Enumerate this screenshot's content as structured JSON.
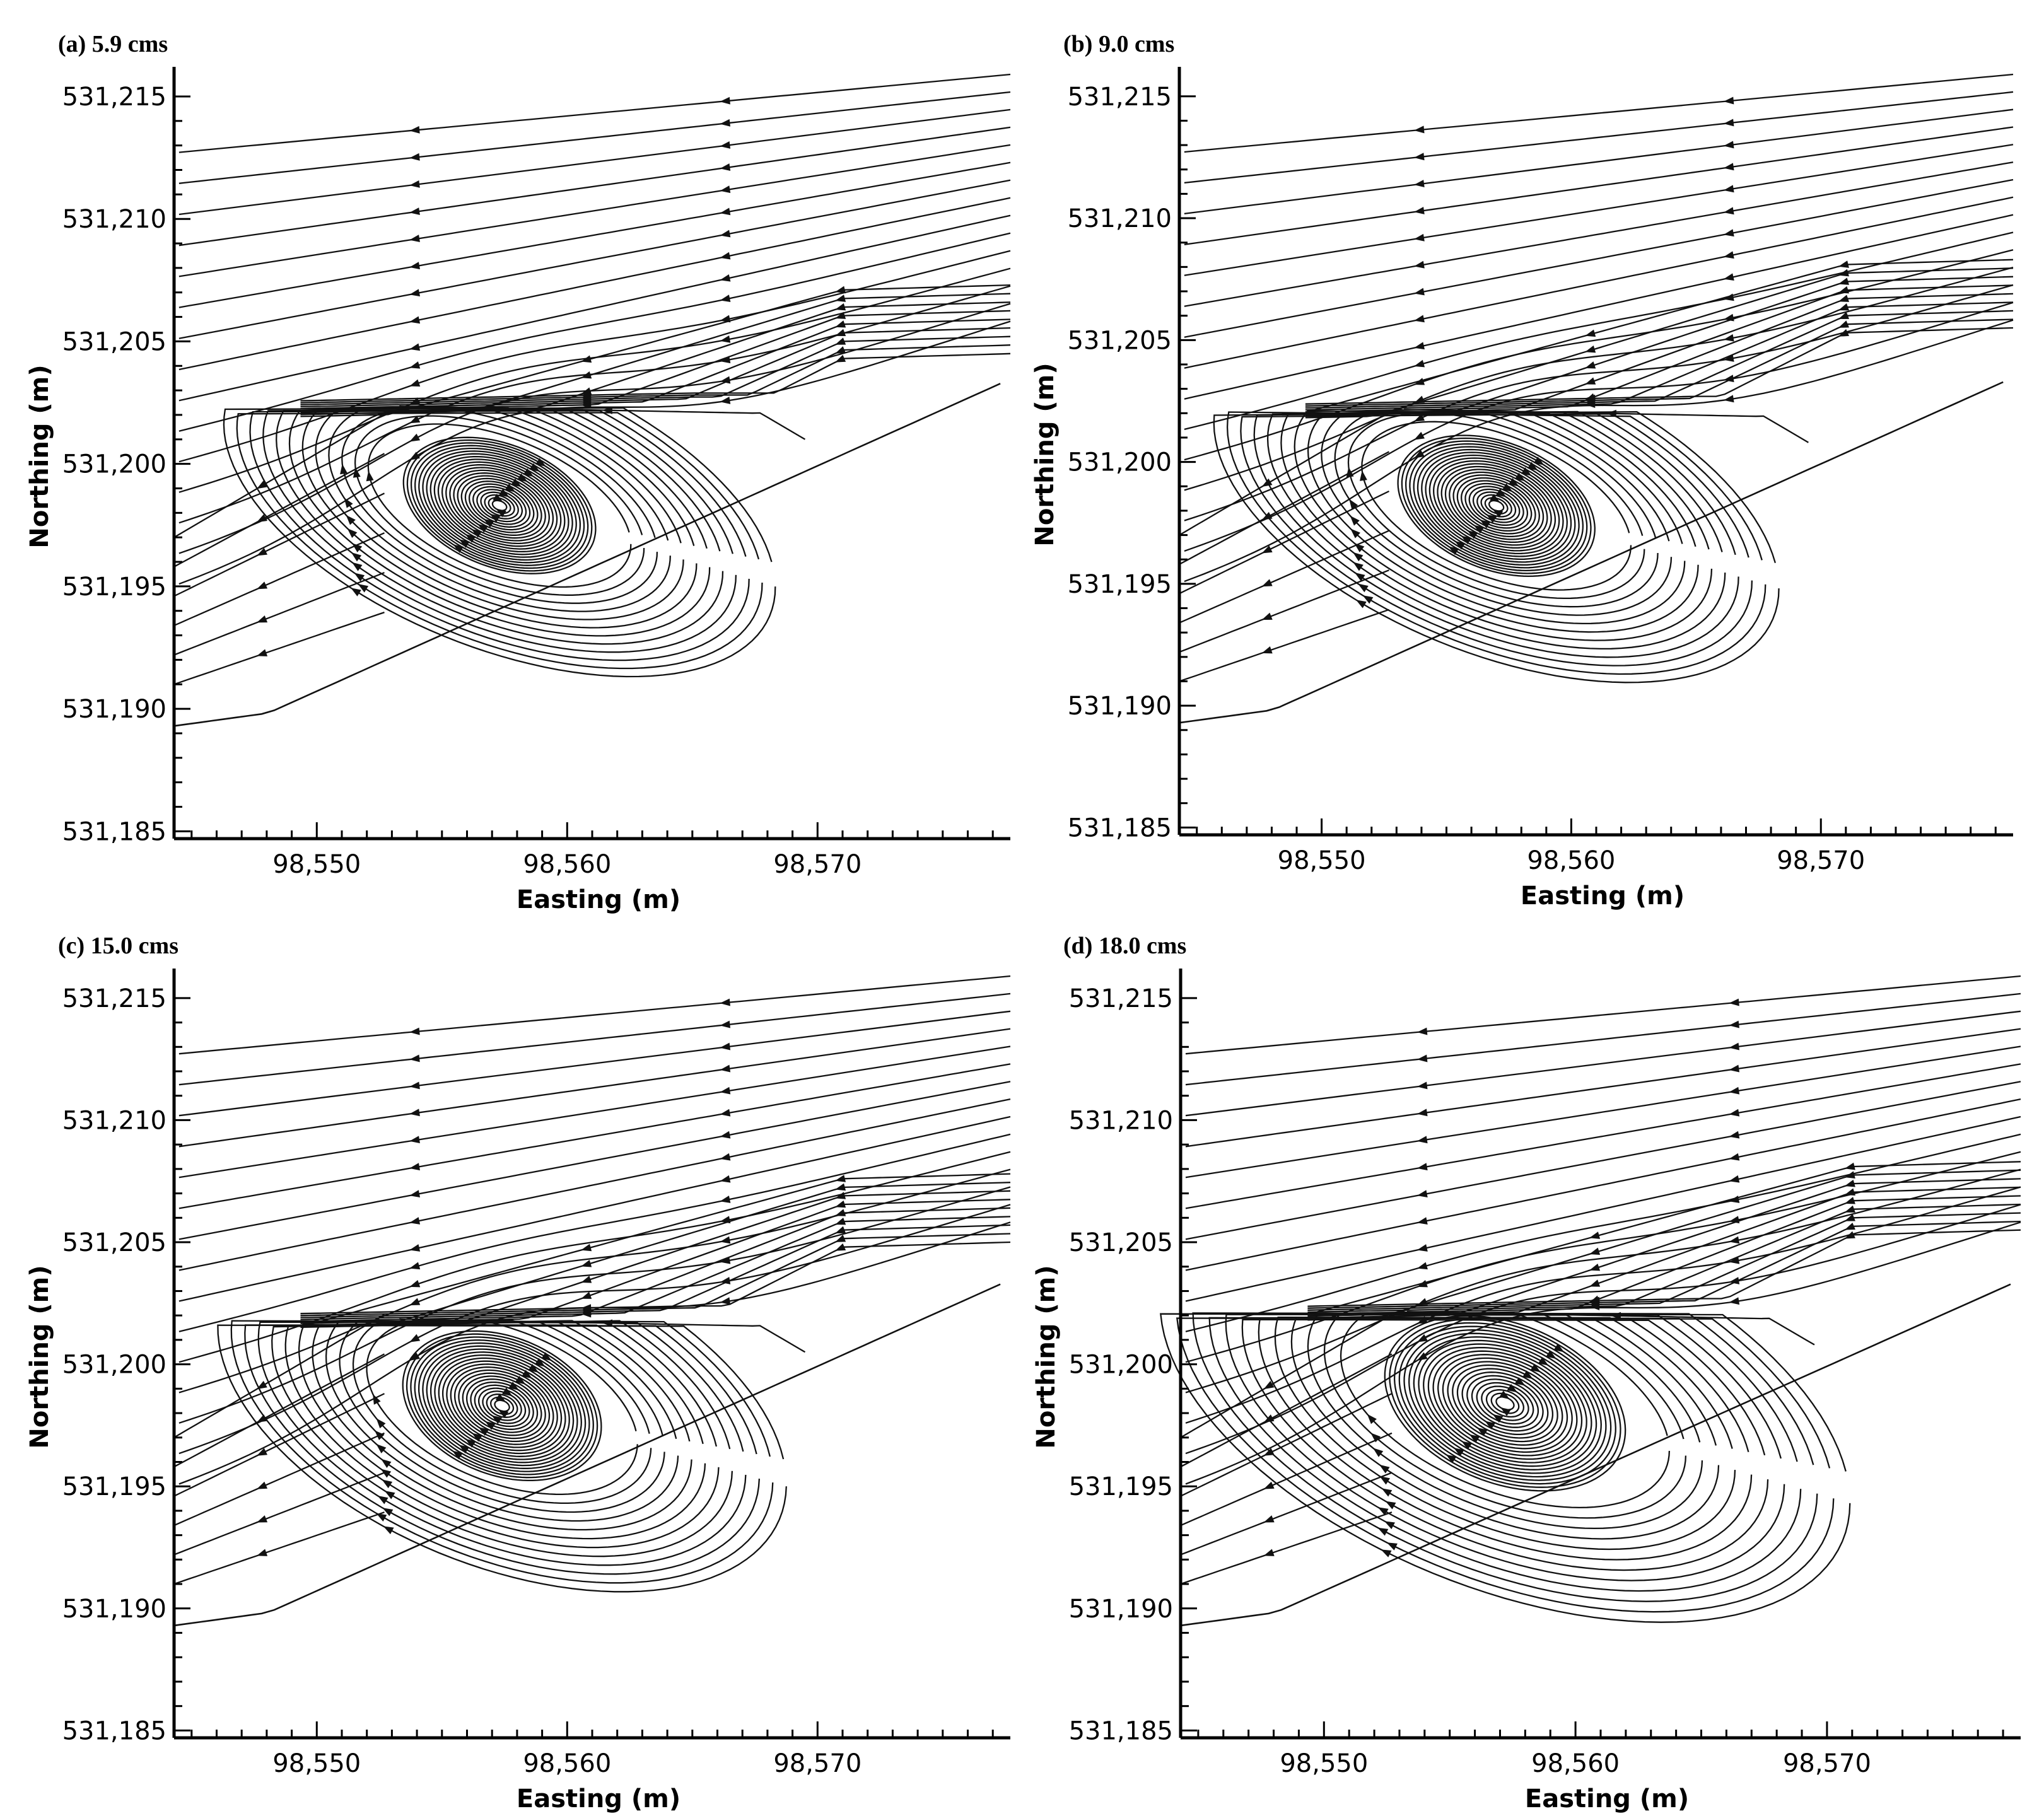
{
  "figure": {
    "panels": [
      {
        "id": "a",
        "title": "(a) 5.9 cms",
        "discharge": "5.9 cms"
      },
      {
        "id": "b",
        "title": "(b) 9.0 cms",
        "discharge": "9.0 cms"
      },
      {
        "id": "c",
        "title": "(c) 15.0 cms",
        "discharge": "15.0 cms"
      },
      {
        "id": "d",
        "title": "(d) 18.0 cms",
        "discharge": "18.0 cms"
      }
    ]
  },
  "chart_data": [
    {
      "type": "streamline",
      "title": "(a) 5.9 cms",
      "xlabel": "Easting (m)",
      "ylabel": "Northing (m)",
      "xlim": [
        98544.3,
        98577.7
      ],
      "ylim": [
        531184.7,
        531215.9
      ],
      "xticks": [
        "98,550",
        "98,560",
        "98,570"
      ],
      "yticks": [
        "531,185",
        "531,190",
        "531,195",
        "531,200",
        "531,205",
        "531,210",
        "531,215"
      ],
      "vortex_center": {
        "x": 98557.3,
        "y": 531198.3
      },
      "vortex_radius": {
        "x": 3.7,
        "y": 2.3
      },
      "separation_line_y": 531202.2,
      "upper_band_y": 531205.5,
      "flow_direction": "right-to-left"
    },
    {
      "type": "streamline",
      "title": "(b) 9.0 cms",
      "xlabel": "Easting (m)",
      "ylabel": "Northing (m)",
      "xlim": [
        98544.3,
        98577.7
      ],
      "ylim": [
        531184.7,
        531215.9
      ],
      "xticks": [
        "98,550",
        "98,560",
        "98,570"
      ],
      "yticks": [
        "531,185",
        "531,190",
        "531,195",
        "531,200",
        "531,205",
        "531,210",
        "531,215"
      ],
      "vortex_center": {
        "x": 98557.0,
        "y": 531198.2
      },
      "vortex_radius": {
        "x": 3.8,
        "y": 2.4
      },
      "separation_line_y": 531202.0,
      "upper_band_y": 531206.5,
      "flow_direction": "right-to-left"
    },
    {
      "type": "streamline",
      "title": "(c) 15.0 cms",
      "xlabel": "Easting (m)",
      "ylabel": "Northing (m)",
      "xlim": [
        98544.3,
        98577.7
      ],
      "ylim": [
        531184.7,
        531215.9
      ],
      "xticks": [
        "98,550",
        "98,560",
        "98,570"
      ],
      "yticks": [
        "531,185",
        "531,190",
        "531,195",
        "531,200",
        "531,205",
        "531,210",
        "531,215"
      ],
      "vortex_center": {
        "x": 98557.4,
        "y": 531198.3
      },
      "vortex_radius": {
        "x": 3.8,
        "y": 2.6
      },
      "separation_line_y": 531201.7,
      "upper_band_y": 531206.0,
      "flow_direction": "right-to-left"
    },
    {
      "type": "streamline",
      "title": "(d) 18.0 cms",
      "xlabel": "Easting (m)",
      "ylabel": "Northing (m)",
      "xlim": [
        98544.3,
        98577.7
      ],
      "ylim": [
        531184.7,
        531215.9
      ],
      "xticks": [
        "98,550",
        "98,560",
        "98,570"
      ],
      "yticks": [
        "531,185",
        "531,190",
        "531,195",
        "531,200",
        "531,205",
        "531,210",
        "531,215"
      ],
      "vortex_center": {
        "x": 98557.2,
        "y": 531198.4
      },
      "vortex_radius": {
        "x": 4.6,
        "y": 3.0
      },
      "separation_line_y": 531202.0,
      "upper_band_y": 531206.5,
      "flow_direction": "right-to-left"
    }
  ]
}
